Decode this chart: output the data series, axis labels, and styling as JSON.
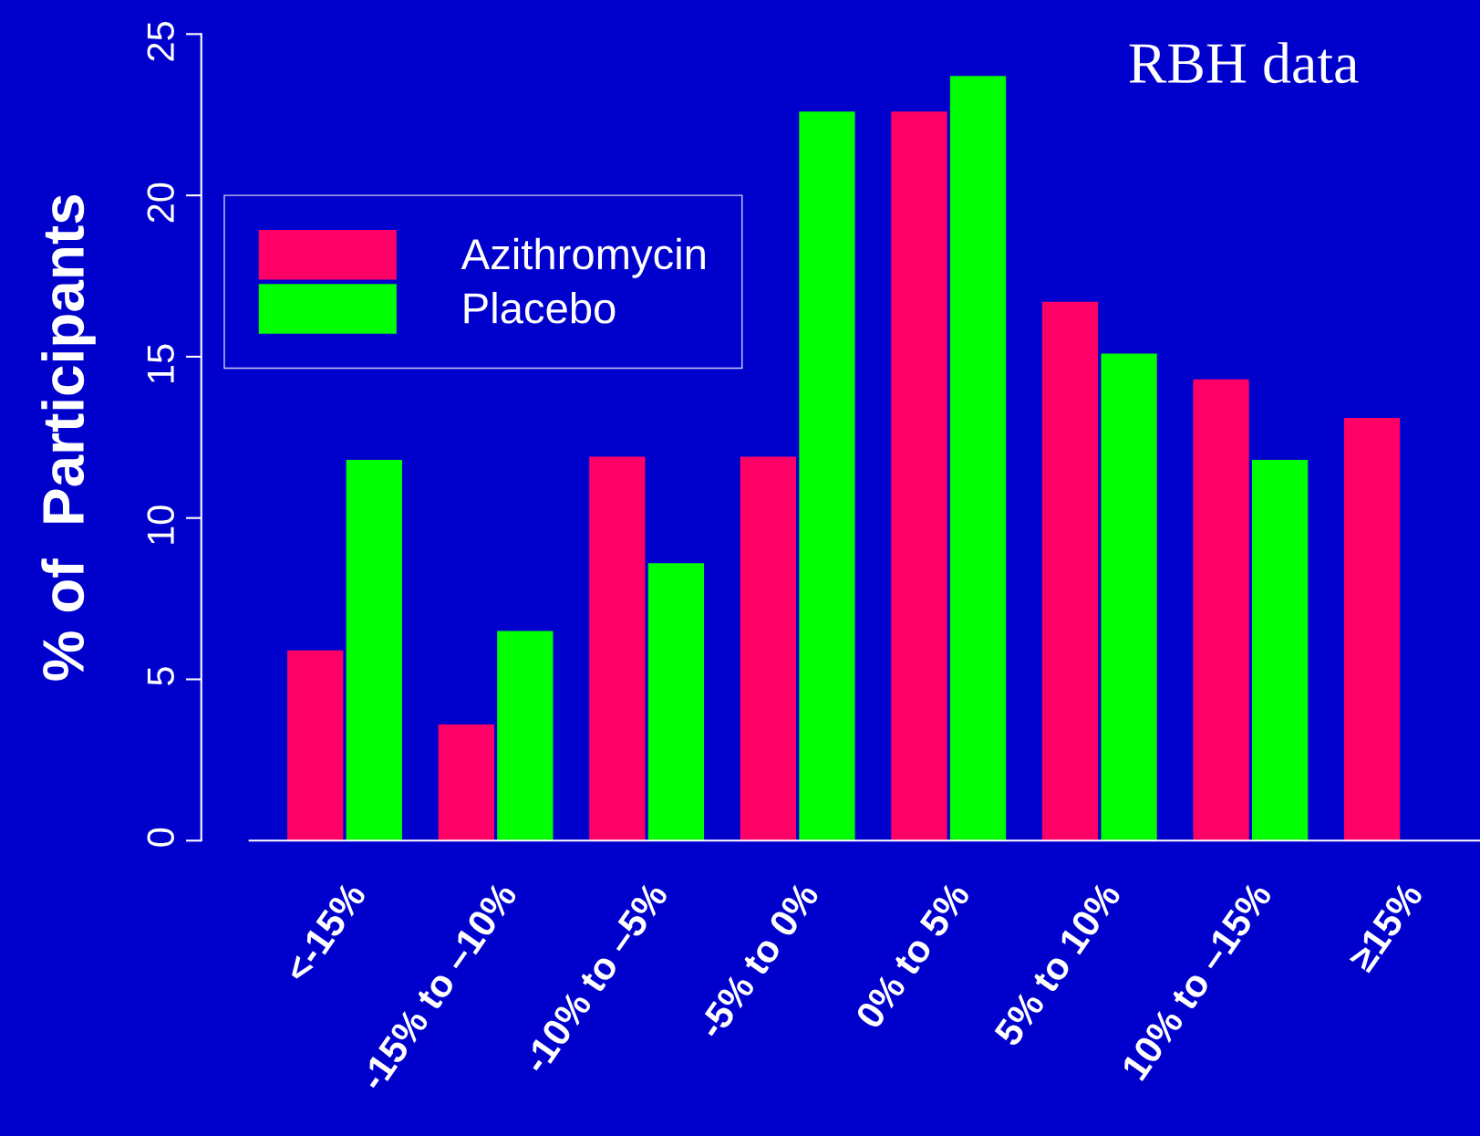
{
  "chart_data": {
    "type": "bar",
    "title": "RBH data",
    "ylabel": "% of  Participants",
    "categories": [
      "<-15%",
      "-15% to –10%",
      "-10% to –5%",
      "-5% to 0%",
      "0% to 5%",
      "5% to 10%",
      "10% to –15%",
      "≥15%"
    ],
    "series": [
      {
        "name": "Azithromycin",
        "color": "#ff0066",
        "values": [
          5.9,
          3.6,
          11.9,
          11.9,
          22.6,
          16.7,
          14.3,
          13.1
        ]
      },
      {
        "name": "Placebo",
        "color": "#00ff00",
        "values": [
          11.8,
          6.5,
          8.6,
          22.6,
          23.7,
          15.1,
          11.8,
          0
        ]
      }
    ],
    "ylim": [
      0,
      25
    ],
    "yticks": [
      0,
      5,
      10,
      15,
      20,
      25
    ],
    "grid": false,
    "legend": "top left"
  }
}
